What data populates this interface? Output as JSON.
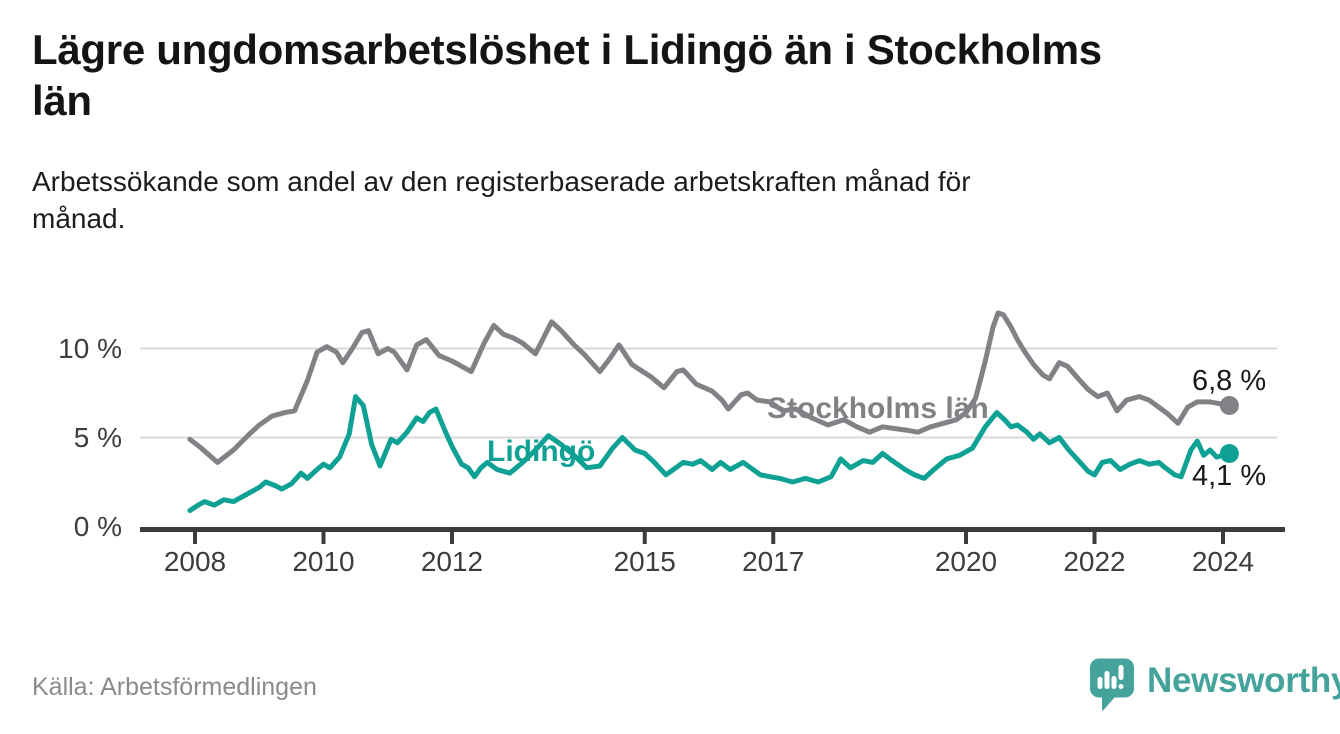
{
  "header": {
    "title": "Lägre ungdomsarbetslöshet i Lidingö än i Stockholms län",
    "title_lines": [
      "Lägre ungdomsarbetslöshet i Lidingö än i Stockholms",
      "län"
    ],
    "subtitle": "Arbetssökande som andel av den registerbaserade arbetskraften månad för månad.",
    "subtitle_lines": [
      "Arbetssökande som andel av den registerbaserade arbetskraften månad för",
      "månad."
    ]
  },
  "footer": {
    "source": "Källa: Arbetsförmedlingen",
    "logo_text": "Newsworthy",
    "logo_icon": "speech-bubble-bar-chart-icon",
    "logo_color": "#44A39B"
  },
  "colors": {
    "stockholm_line": "#808285",
    "lidingo_line": "#0FA294",
    "gridline": "#d9d9d9",
    "axis": "#3c3c3c",
    "tick_label": "#3d3d3d",
    "value_label": "#1a1a1a"
  },
  "chart_data": {
    "type": "line",
    "unit": "%",
    "grid": "horizontal",
    "legend_position": "inline-on-lines",
    "x_ticks": [
      2008,
      2010,
      2012,
      2015,
      2017,
      2020,
      2022,
      2024
    ],
    "y_ticks": [
      {
        "value": 0,
        "label": "0 %"
      },
      {
        "value": 5,
        "label": "5 %"
      },
      {
        "value": 10,
        "label": "10 %"
      }
    ],
    "x_range": [
      2007.2,
      2024.95
    ],
    "y_range": [
      0,
      12.6
    ],
    "series": [
      {
        "name": "Stockholms län",
        "color": "#808285",
        "end_label": "6,8 %",
        "end_value": 6.8,
        "points": [
          [
            2007.92,
            4.9
          ],
          [
            2008.1,
            4.4
          ],
          [
            2008.35,
            3.6
          ],
          [
            2008.6,
            4.3
          ],
          [
            2008.85,
            5.2
          ],
          [
            2009.0,
            5.7
          ],
          [
            2009.2,
            6.2
          ],
          [
            2009.4,
            6.4
          ],
          [
            2009.55,
            6.5
          ],
          [
            2009.75,
            8.2
          ],
          [
            2009.9,
            9.8
          ],
          [
            2010.05,
            10.1
          ],
          [
            2010.2,
            9.8
          ],
          [
            2010.3,
            9.2
          ],
          [
            2010.45,
            10.0
          ],
          [
            2010.6,
            10.9
          ],
          [
            2010.7,
            11.0
          ],
          [
            2010.85,
            9.7
          ],
          [
            2011.0,
            10.0
          ],
          [
            2011.1,
            9.8
          ],
          [
            2011.3,
            8.8
          ],
          [
            2011.45,
            10.2
          ],
          [
            2011.6,
            10.5
          ],
          [
            2011.8,
            9.6
          ],
          [
            2012.0,
            9.3
          ],
          [
            2012.15,
            9.0
          ],
          [
            2012.3,
            8.7
          ],
          [
            2012.5,
            10.3
          ],
          [
            2012.65,
            11.3
          ],
          [
            2012.8,
            10.8
          ],
          [
            2012.95,
            10.6
          ],
          [
            2013.1,
            10.3
          ],
          [
            2013.3,
            9.7
          ],
          [
            2013.55,
            11.5
          ],
          [
            2013.7,
            11.0
          ],
          [
            2013.9,
            10.2
          ],
          [
            2014.05,
            9.7
          ],
          [
            2014.3,
            8.7
          ],
          [
            2014.45,
            9.4
          ],
          [
            2014.6,
            10.2
          ],
          [
            2014.8,
            9.1
          ],
          [
            2014.97,
            8.7
          ],
          [
            2015.1,
            8.4
          ],
          [
            2015.3,
            7.8
          ],
          [
            2015.5,
            8.7
          ],
          [
            2015.6,
            8.8
          ],
          [
            2015.8,
            8.0
          ],
          [
            2016.05,
            7.6
          ],
          [
            2016.2,
            7.1
          ],
          [
            2016.3,
            6.6
          ],
          [
            2016.5,
            7.4
          ],
          [
            2016.6,
            7.5
          ],
          [
            2016.75,
            7.1
          ],
          [
            2016.95,
            7.0
          ],
          [
            2017.15,
            6.5
          ],
          [
            2017.35,
            6.6
          ],
          [
            2017.6,
            6.1
          ],
          [
            2017.85,
            5.7
          ],
          [
            2018.1,
            6.0
          ],
          [
            2018.3,
            5.6
          ],
          [
            2018.5,
            5.3
          ],
          [
            2018.7,
            5.6
          ],
          [
            2018.9,
            5.5
          ],
          [
            2019.1,
            5.4
          ],
          [
            2019.25,
            5.3
          ],
          [
            2019.45,
            5.6
          ],
          [
            2019.65,
            5.8
          ],
          [
            2019.85,
            6.0
          ],
          [
            2020.0,
            6.4
          ],
          [
            2020.15,
            7.2
          ],
          [
            2020.3,
            9.3
          ],
          [
            2020.42,
            11.2
          ],
          [
            2020.5,
            12.0
          ],
          [
            2020.58,
            11.9
          ],
          [
            2020.7,
            11.2
          ],
          [
            2020.8,
            10.5
          ],
          [
            2020.9,
            9.9
          ],
          [
            2021.05,
            9.1
          ],
          [
            2021.2,
            8.5
          ],
          [
            2021.3,
            8.3
          ],
          [
            2021.45,
            9.2
          ],
          [
            2021.58,
            9.0
          ],
          [
            2021.75,
            8.3
          ],
          [
            2021.9,
            7.7
          ],
          [
            2022.05,
            7.3
          ],
          [
            2022.2,
            7.5
          ],
          [
            2022.35,
            6.5
          ],
          [
            2022.5,
            7.1
          ],
          [
            2022.7,
            7.3
          ],
          [
            2022.85,
            7.1
          ],
          [
            2023.0,
            6.7
          ],
          [
            2023.15,
            6.3
          ],
          [
            2023.3,
            5.8
          ],
          [
            2023.45,
            6.7
          ],
          [
            2023.6,
            7.0
          ],
          [
            2023.8,
            7.0
          ],
          [
            2023.95,
            6.9
          ],
          [
            2024.1,
            6.8
          ]
        ]
      },
      {
        "name": "Lidingö",
        "color": "#0FA294",
        "end_label": "4,1 %",
        "end_value": 4.1,
        "points": [
          [
            2007.92,
            0.9
          ],
          [
            2008.05,
            1.2
          ],
          [
            2008.15,
            1.4
          ],
          [
            2008.3,
            1.2
          ],
          [
            2008.45,
            1.5
          ],
          [
            2008.6,
            1.4
          ],
          [
            2008.8,
            1.8
          ],
          [
            2009.0,
            2.2
          ],
          [
            2009.1,
            2.5
          ],
          [
            2009.25,
            2.3
          ],
          [
            2009.35,
            2.1
          ],
          [
            2009.5,
            2.4
          ],
          [
            2009.65,
            3.0
          ],
          [
            2009.75,
            2.7
          ],
          [
            2009.9,
            3.2
          ],
          [
            2010.0,
            3.5
          ],
          [
            2010.1,
            3.3
          ],
          [
            2010.25,
            3.9
          ],
          [
            2010.4,
            5.2
          ],
          [
            2010.5,
            7.3
          ],
          [
            2010.62,
            6.8
          ],
          [
            2010.75,
            4.6
          ],
          [
            2010.88,
            3.4
          ],
          [
            2011.05,
            4.9
          ],
          [
            2011.15,
            4.7
          ],
          [
            2011.3,
            5.3
          ],
          [
            2011.45,
            6.1
          ],
          [
            2011.55,
            5.9
          ],
          [
            2011.65,
            6.4
          ],
          [
            2011.75,
            6.6
          ],
          [
            2011.9,
            5.3
          ],
          [
            2012.0,
            4.5
          ],
          [
            2012.15,
            3.5
          ],
          [
            2012.25,
            3.3
          ],
          [
            2012.35,
            2.8
          ],
          [
            2012.45,
            3.3
          ],
          [
            2012.55,
            3.6
          ],
          [
            2012.7,
            3.2
          ],
          [
            2012.9,
            3.0
          ],
          [
            2013.1,
            3.6
          ],
          [
            2013.3,
            4.3
          ],
          [
            2013.5,
            5.1
          ],
          [
            2013.7,
            4.6
          ],
          [
            2013.9,
            4.0
          ],
          [
            2014.1,
            3.3
          ],
          [
            2014.3,
            3.4
          ],
          [
            2014.5,
            4.4
          ],
          [
            2014.65,
            5.0
          ],
          [
            2014.85,
            4.3
          ],
          [
            2015.0,
            4.1
          ],
          [
            2015.15,
            3.6
          ],
          [
            2015.33,
            2.9
          ],
          [
            2015.6,
            3.6
          ],
          [
            2015.75,
            3.5
          ],
          [
            2015.87,
            3.7
          ],
          [
            2016.05,
            3.2
          ],
          [
            2016.18,
            3.6
          ],
          [
            2016.33,
            3.2
          ],
          [
            2016.53,
            3.6
          ],
          [
            2016.8,
            2.9
          ],
          [
            2016.95,
            2.8
          ],
          [
            2017.1,
            2.7
          ],
          [
            2017.3,
            2.5
          ],
          [
            2017.5,
            2.7
          ],
          [
            2017.7,
            2.5
          ],
          [
            2017.9,
            2.8
          ],
          [
            2018.05,
            3.8
          ],
          [
            2018.2,
            3.3
          ],
          [
            2018.4,
            3.7
          ],
          [
            2018.55,
            3.6
          ],
          [
            2018.7,
            4.1
          ],
          [
            2018.85,
            3.7
          ],
          [
            2019.05,
            3.2
          ],
          [
            2019.2,
            2.9
          ],
          [
            2019.35,
            2.7
          ],
          [
            2019.5,
            3.2
          ],
          [
            2019.7,
            3.8
          ],
          [
            2019.9,
            4.0
          ],
          [
            2020.1,
            4.4
          ],
          [
            2020.3,
            5.6
          ],
          [
            2020.48,
            6.4
          ],
          [
            2020.6,
            6.0
          ],
          [
            2020.7,
            5.6
          ],
          [
            2020.8,
            5.7
          ],
          [
            2020.95,
            5.3
          ],
          [
            2021.05,
            4.9
          ],
          [
            2021.15,
            5.2
          ],
          [
            2021.3,
            4.7
          ],
          [
            2021.45,
            5.0
          ],
          [
            2021.6,
            4.3
          ],
          [
            2021.75,
            3.7
          ],
          [
            2021.9,
            3.1
          ],
          [
            2022.0,
            2.9
          ],
          [
            2022.12,
            3.6
          ],
          [
            2022.25,
            3.7
          ],
          [
            2022.4,
            3.2
          ],
          [
            2022.55,
            3.5
          ],
          [
            2022.7,
            3.7
          ],
          [
            2022.85,
            3.5
          ],
          [
            2023.0,
            3.6
          ],
          [
            2023.1,
            3.3
          ],
          [
            2023.25,
            2.9
          ],
          [
            2023.35,
            2.8
          ],
          [
            2023.5,
            4.3
          ],
          [
            2023.6,
            4.8
          ],
          [
            2023.7,
            4.0
          ],
          [
            2023.8,
            4.3
          ],
          [
            2023.9,
            3.9
          ],
          [
            2024.0,
            4.0
          ],
          [
            2024.1,
            4.1
          ]
        ]
      }
    ]
  }
}
